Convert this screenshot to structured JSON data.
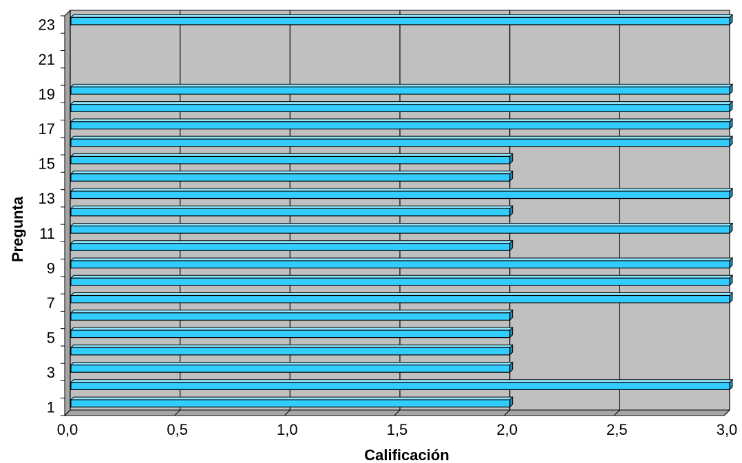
{
  "chart_data": {
    "type": "bar",
    "orientation": "horizontal",
    "style": "3d",
    "title": "",
    "xlabel": "Calificación",
    "ylabel": "Pregunta",
    "xlim": [
      0,
      3
    ],
    "xticks": [
      "0,0",
      "0,5",
      "1,0",
      "1,5",
      "2,0",
      "2,5",
      "3,0"
    ],
    "yticks": [
      "1",
      "3",
      "5",
      "7",
      "9",
      "11",
      "13",
      "15",
      "17",
      "19",
      "21",
      "23"
    ],
    "categories": [
      "1",
      "2",
      "3",
      "4",
      "5",
      "6",
      "7",
      "8",
      "9",
      "10",
      "11",
      "12",
      "13",
      "14",
      "15",
      "16",
      "17",
      "18",
      "19",
      "20",
      "21",
      "22",
      "23"
    ],
    "values": [
      2,
      3,
      2,
      2,
      2,
      2,
      3,
      3,
      3,
      2,
      3,
      2,
      3,
      2,
      2,
      3,
      3,
      3,
      3,
      null,
      null,
      null,
      3
    ],
    "grid": true,
    "legend": "none",
    "colors": {
      "bar_face": "#33CCFF",
      "bar_top": "#8FE6FF",
      "bar_side": "#1E8FB8",
      "plot_bg": "#C0C0C0",
      "wall": "#A6A6A6",
      "grid": "#000000"
    }
  }
}
